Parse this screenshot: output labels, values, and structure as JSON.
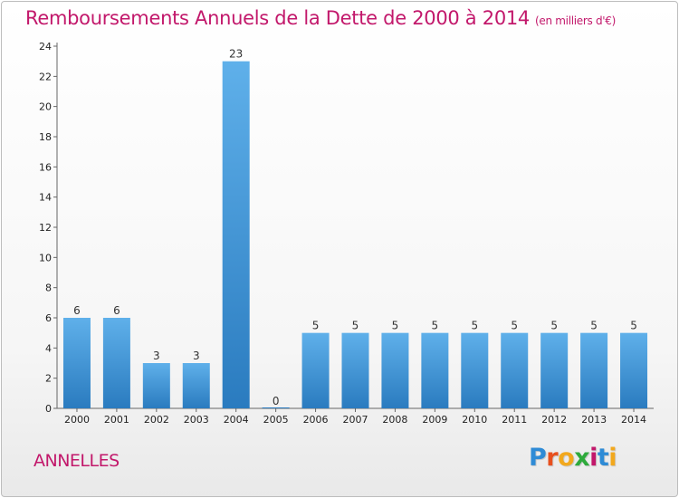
{
  "header": {
    "title": "Remboursements Annuels de la Dette de 2000 à 2014",
    "subtitle": "(en milliers d'€)"
  },
  "footer": {
    "commune": "ANNELLES",
    "logo": {
      "letters": [
        "P",
        "r",
        "o",
        "x",
        "i",
        "t",
        "i"
      ],
      "colors": [
        "#2e8bd6",
        "#e8501e",
        "#f2a81d",
        "#2eaa3c",
        "#c2186b",
        "#2e8bd6",
        "#f2a81d"
      ]
    }
  },
  "chart_data": {
    "type": "bar",
    "categories": [
      "2000",
      "2001",
      "2002",
      "2003",
      "2004",
      "2005",
      "2006",
      "2007",
      "2008",
      "2009",
      "2010",
      "2011",
      "2012",
      "2013",
      "2014"
    ],
    "values": [
      6,
      6,
      3,
      3,
      23,
      0,
      5,
      5,
      5,
      5,
      5,
      5,
      5,
      5,
      5
    ],
    "title": "Remboursements Annuels de la Dette de 2000 à 2014",
    "ylim": [
      0,
      24
    ],
    "yticks": [
      0,
      2,
      4,
      6,
      8,
      10,
      12,
      14,
      16,
      18,
      20,
      22,
      24
    ],
    "grid": false,
    "legend": "none",
    "colors": {
      "bar_top": "#5fb0ea",
      "bar_bottom": "#2a7bbf",
      "axis": "#666666"
    }
  }
}
